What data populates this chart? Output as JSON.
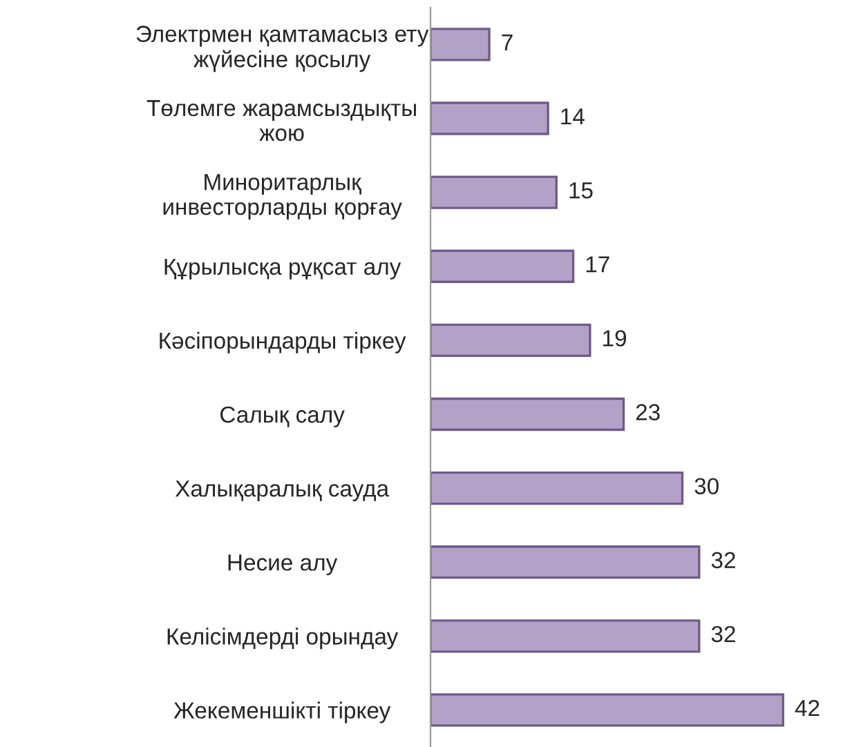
{
  "chart_data": {
    "type": "bar",
    "orientation": "horizontal",
    "categories": [
      "Электрмен қамтамасыз ету\nжүйесіне қосылу",
      "Төлемге жарамсыздықты\nжою",
      "Миноритарлық\nинвесторларды қорғау",
      "Құрылысқа рұқсат алу",
      "Кәсіпорындарды тіркеу",
      "Салық салу",
      "Халықаралық сауда",
      "Несие алу",
      "Келісімдерді орындау",
      "Жекеменшікті тіркеу"
    ],
    "values": [
      7,
      14,
      15,
      17,
      19,
      23,
      30,
      32,
      32,
      42
    ],
    "color": "#b3a2c7",
    "data_labels": true,
    "tick_labels": "y",
    "grid": false,
    "legend": false
  }
}
